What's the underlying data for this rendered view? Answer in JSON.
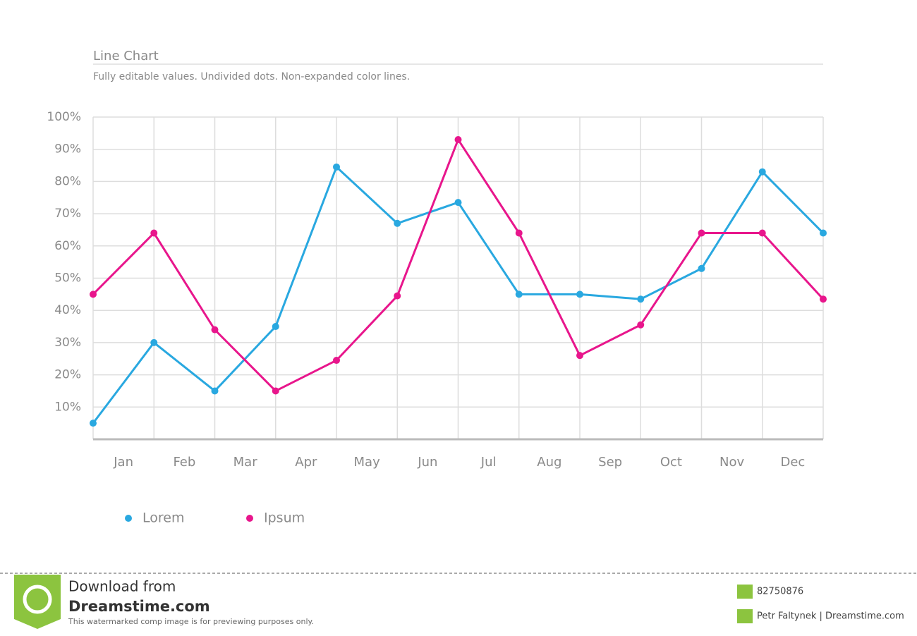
{
  "chart_data": {
    "type": "line",
    "title": "Line Chart",
    "subtitle": "Fully editable values. Undivided dots. Non-expanded color lines.",
    "x": [
      0,
      1,
      2,
      3,
      4,
      5,
      6,
      7,
      8,
      9,
      10,
      11,
      12
    ],
    "xlim": [
      0,
      12
    ],
    "xticks": [
      {
        "value": 0.5,
        "label": "Jan"
      },
      {
        "value": 1.5,
        "label": "Feb"
      },
      {
        "value": 2.5,
        "label": "Mar"
      },
      {
        "value": 3.5,
        "label": "Apr"
      },
      {
        "value": 4.5,
        "label": "May"
      },
      {
        "value": 5.5,
        "label": "Jun"
      },
      {
        "value": 6.5,
        "label": "Jul"
      },
      {
        "value": 7.5,
        "label": "Aug"
      },
      {
        "value": 8.5,
        "label": "Sep"
      },
      {
        "value": 9.5,
        "label": "Oct"
      },
      {
        "value": 10.5,
        "label": "Nov"
      },
      {
        "value": 11.5,
        "label": "Dec"
      }
    ],
    "ylim": [
      0,
      100
    ],
    "yticks": [
      {
        "value": 10,
        "label": "10%"
      },
      {
        "value": 20,
        "label": "20%"
      },
      {
        "value": 30,
        "label": "30%"
      },
      {
        "value": 40,
        "label": "40%"
      },
      {
        "value": 50,
        "label": "50%"
      },
      {
        "value": 60,
        "label": "60%"
      },
      {
        "value": 70,
        "label": "70%"
      },
      {
        "value": 80,
        "label": "80%"
      },
      {
        "value": 90,
        "label": "90%"
      },
      {
        "value": 100,
        "label": "100%"
      }
    ],
    "grid": true,
    "legend": "bottom-left",
    "series": [
      {
        "name": "Lorem",
        "color": "#29a8e0",
        "values": [
          5,
          30,
          15,
          35,
          84.5,
          67,
          73.5,
          45,
          45,
          43.5,
          53,
          83,
          64
        ]
      },
      {
        "name": "Ipsum",
        "color": "#e8168c",
        "values": [
          45,
          64,
          34,
          15,
          24.5,
          44.5,
          93,
          64,
          26,
          35.5,
          64,
          64,
          43.5
        ]
      }
    ]
  },
  "footer": {
    "download": "Download from",
    "site": "Dreamstime.com",
    "notice": "This watermarked comp image is for previewing purposes only.",
    "id": "82750876",
    "author": "Petr Faltynek | Dreamstime.com"
  }
}
